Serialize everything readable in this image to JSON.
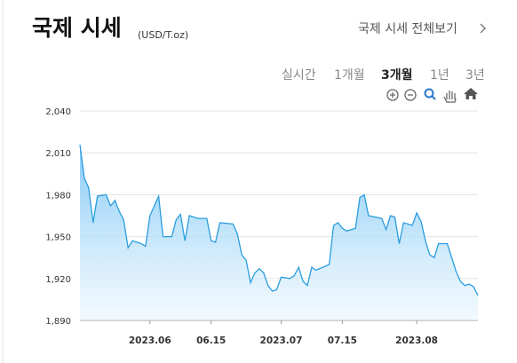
{
  "header": {
    "title": "국제 시세",
    "unit": "(USD/T.oz)",
    "link": "국제 시세 전체보기"
  },
  "periods": [
    "실시간",
    "1개월",
    "3개월",
    "1년",
    "3년"
  ],
  "chart_data": {
    "type": "area",
    "color": "#2a9de0",
    "grid": true,
    "x": [
      "2023-05-16",
      "2023-05-17",
      "2023-05-18",
      "2023-05-19",
      "2023-05-20",
      "2023-05-22",
      "2023-05-23",
      "2023-05-24",
      "2023-05-25",
      "2023-05-26",
      "2023-05-27",
      "2023-05-28",
      "2023-05-30",
      "2023-05-31",
      "2023-06-01",
      "2023-06-02",
      "2023-06-03",
      "2023-06-04",
      "2023-06-06",
      "2023-06-07",
      "2023-06-08",
      "2023-06-09",
      "2023-06-10",
      "2023-06-12",
      "2023-06-14",
      "2023-06-15",
      "2023-06-16",
      "2023-06-17",
      "2023-06-20",
      "2023-06-21",
      "2023-06-22",
      "2023-06-23",
      "2023-06-24",
      "2023-06-25",
      "2023-06-26",
      "2023-06-27",
      "2023-06-28",
      "2023-06-29",
      "2023-06-30",
      "2023-07-01",
      "2023-07-03",
      "2023-07-04",
      "2023-07-05",
      "2023-07-06",
      "2023-07-07",
      "2023-07-08",
      "2023-07-09",
      "2023-07-12",
      "2023-07-13",
      "2023-07-14",
      "2023-07-15",
      "2023-07-16",
      "2023-07-18",
      "2023-07-19",
      "2023-07-20",
      "2023-07-21",
      "2023-07-24",
      "2023-07-25",
      "2023-07-26",
      "2023-07-27",
      "2023-07-28",
      "2023-07-29",
      "2023-07-31",
      "2023-08-01",
      "2023-08-02",
      "2023-08-03",
      "2023-08-04",
      "2023-08-05",
      "2023-08-06",
      "2023-08-08",
      "2023-08-09",
      "2023-08-10",
      "2023-08-11",
      "2023-08-12",
      "2023-08-13",
      "2023-08-14",
      "2023-08-15"
    ],
    "values": [
      2016,
      1992,
      1985,
      1960,
      1979,
      1980,
      1972,
      1976,
      1968,
      1962,
      1942,
      1947,
      1945,
      1943,
      1965,
      1972,
      1979,
      1950,
      1950,
      1962,
      1966,
      1947,
      1965,
      1963,
      1963,
      1947,
      1946,
      1960,
      1959,
      1952,
      1937,
      1933,
      1917,
      1924,
      1927,
      1924,
      1915,
      1911,
      1912,
      1921,
      1920,
      1922,
      1928,
      1918,
      1915,
      1928,
      1926,
      1930,
      1958,
      1960,
      1956,
      1954,
      1956,
      1978,
      1980,
      1965,
      1963,
      1955,
      1965,
      1964,
      1945,
      1960,
      1958,
      1967,
      1961,
      1947,
      1937,
      1935,
      1945,
      1945,
      1935,
      1925,
      1918,
      1915,
      1916,
      1914,
      1908
    ],
    "xlim": [
      "2023-05-16",
      "2023-08-15"
    ],
    "xticks": [
      {
        "value": "2023-06-01",
        "label": "2023.06"
      },
      {
        "value": "2023-06-15",
        "label": "06.15"
      },
      {
        "value": "2023-07-01",
        "label": "2023.07"
      },
      {
        "value": "2023-07-15",
        "label": "07.15"
      },
      {
        "value": "2023-08-01",
        "label": "2023.08"
      }
    ],
    "ylim": [
      1890,
      2040
    ],
    "yticks": [
      {
        "value": 1890,
        "label": "1,890"
      },
      {
        "value": 1920,
        "label": "1,920"
      },
      {
        "value": 1950,
        "label": "1,950"
      },
      {
        "value": 1980,
        "label": "1,980"
      },
      {
        "value": 2010,
        "label": "2,010"
      },
      {
        "value": 2040,
        "label": "2,040"
      }
    ]
  }
}
